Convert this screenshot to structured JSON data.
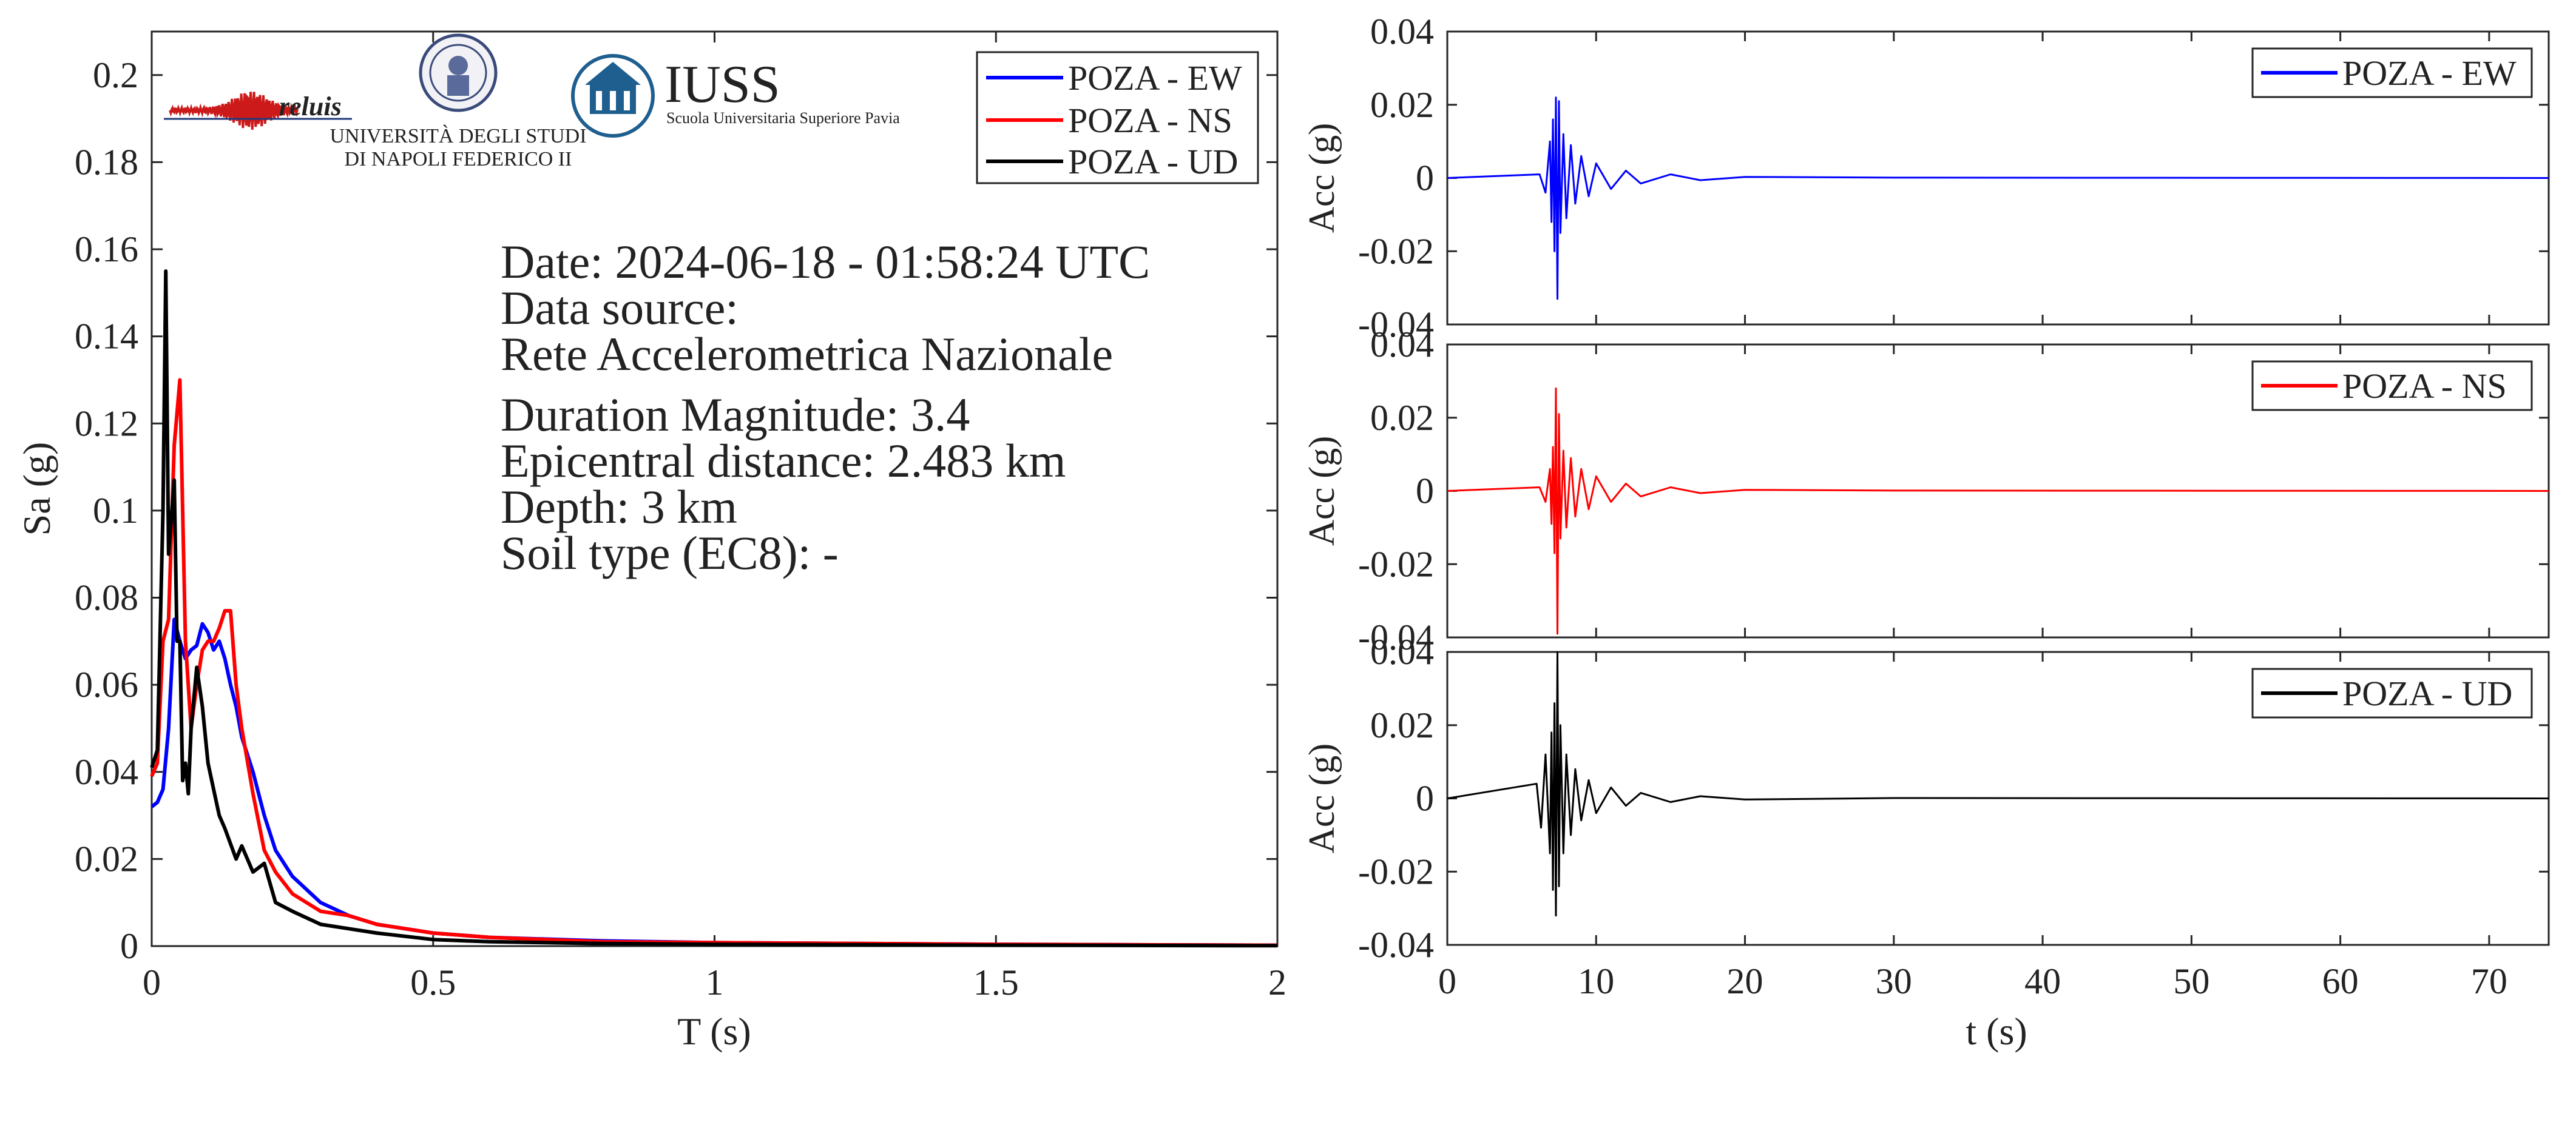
{
  "colors": {
    "ew": "#0000ff",
    "ns": "#ff0000",
    "ud": "#000000",
    "axis": "#262626"
  },
  "logos": {
    "reluis": "reluis",
    "unina_line1": "UNIVERSITÀ DEGLI STUDI",
    "unina_line2": "DI NAPOLI FEDERICO II",
    "iuss_title": "IUSS",
    "iuss_subtitle": "Scuola Universitaria Superiore Pavia"
  },
  "info": {
    "date": "Date: 2024-06-18 - 01:58:24 UTC",
    "source_label": "Data source:",
    "source_value": "Rete Accelerometrica Nazionale",
    "magnitude": "Duration Magnitude: 3.4",
    "distance": "Epicentral distance: 2.483 km",
    "depth": "Depth: 3 km",
    "soil": "Soil type (EC8): -"
  },
  "chart_data": [
    {
      "type": "line",
      "xlabel": "T (s)",
      "ylabel": "Sa (g)",
      "xlim": [
        0,
        2
      ],
      "ylim": [
        0,
        0.21
      ],
      "xticks": [
        0,
        0.5,
        1,
        1.5,
        2
      ],
      "xtick_labels": [
        "0",
        "0.5",
        "1",
        "1.5",
        "2"
      ],
      "yticks": [
        0,
        0.02,
        0.04,
        0.06,
        0.08,
        0.1,
        0.12,
        0.14,
        0.16,
        0.18,
        0.2
      ],
      "ytick_labels": [
        "0",
        "0.02",
        "0.04",
        "0.06",
        "0.08",
        "0.1",
        "0.12",
        "0.14",
        "0.16",
        "0.18",
        "0.2"
      ],
      "legend": "top-right",
      "series": [
        {
          "name": "POZA - EW",
          "color": "#0000ff",
          "x": [
            0,
            0.01,
            0.02,
            0.03,
            0.04,
            0.05,
            0.06,
            0.07,
            0.08,
            0.09,
            0.1,
            0.11,
            0.12,
            0.13,
            0.14,
            0.15,
            0.16,
            0.18,
            0.2,
            0.22,
            0.25,
            0.3,
            0.35,
            0.4,
            0.5,
            0.6,
            0.8,
            1.0,
            1.5,
            2.0
          ],
          "y": [
            0.032,
            0.033,
            0.036,
            0.05,
            0.075,
            0.07,
            0.066,
            0.068,
            0.069,
            0.074,
            0.072,
            0.068,
            0.07,
            0.066,
            0.06,
            0.055,
            0.048,
            0.04,
            0.03,
            0.022,
            0.016,
            0.01,
            0.007,
            0.005,
            0.003,
            0.002,
            0.0012,
            0.0008,
            0.0004,
            0.0002
          ]
        },
        {
          "name": "POZA - NS",
          "color": "#ff0000",
          "x": [
            0,
            0.01,
            0.02,
            0.03,
            0.04,
            0.05,
            0.06,
            0.07,
            0.08,
            0.09,
            0.1,
            0.11,
            0.12,
            0.13,
            0.14,
            0.15,
            0.16,
            0.18,
            0.2,
            0.22,
            0.25,
            0.3,
            0.35,
            0.4,
            0.5,
            0.6,
            0.8,
            1.0,
            1.5,
            2.0
          ],
          "y": [
            0.039,
            0.042,
            0.07,
            0.075,
            0.115,
            0.13,
            0.07,
            0.05,
            0.06,
            0.068,
            0.07,
            0.07,
            0.073,
            0.077,
            0.077,
            0.06,
            0.05,
            0.035,
            0.022,
            0.017,
            0.012,
            0.008,
            0.007,
            0.005,
            0.003,
            0.002,
            0.001,
            0.0008,
            0.0004,
            0.0002
          ]
        },
        {
          "name": "POZA - UD",
          "color": "#000000",
          "x": [
            0,
            0.01,
            0.02,
            0.025,
            0.03,
            0.04,
            0.045,
            0.05,
            0.055,
            0.06,
            0.065,
            0.07,
            0.08,
            0.09,
            0.1,
            0.11,
            0.12,
            0.13,
            0.15,
            0.16,
            0.17,
            0.18,
            0.2,
            0.22,
            0.25,
            0.3,
            0.35,
            0.4,
            0.5,
            0.6,
            0.8,
            1.0,
            1.5,
            2.0
          ],
          "y": [
            0.041,
            0.045,
            0.1,
            0.155,
            0.09,
            0.107,
            0.07,
            0.07,
            0.038,
            0.042,
            0.035,
            0.05,
            0.064,
            0.055,
            0.042,
            0.036,
            0.03,
            0.027,
            0.02,
            0.023,
            0.02,
            0.017,
            0.019,
            0.01,
            0.008,
            0.005,
            0.004,
            0.003,
            0.0015,
            0.001,
            0.0006,
            0.0004,
            0.0002,
            0.0001
          ]
        }
      ]
    },
    {
      "type": "line",
      "xlabel": "",
      "ylabel": "Acc (g)",
      "xlim": [
        0,
        74
      ],
      "ylim": [
        -0.04,
        0.04
      ],
      "yticks": [
        -0.04,
        -0.02,
        0,
        0.02,
        0.04
      ],
      "ytick_labels": [
        "-0.04",
        "-0.02",
        "0",
        "0.02",
        "0.04"
      ],
      "legend": "top-right",
      "series": [
        {
          "name": "POZA - EW",
          "color": "#0000ff",
          "x": [
            0,
            6.2,
            6.6,
            6.9,
            7.0,
            7.1,
            7.2,
            7.3,
            7.4,
            7.5,
            7.6,
            7.8,
            8.0,
            8.3,
            8.6,
            9.0,
            9.5,
            10,
            11,
            12,
            13,
            15,
            17,
            20,
            30,
            74
          ],
          "y": [
            0,
            0.001,
            -0.004,
            0.01,
            -0.012,
            0.016,
            -0.02,
            0.022,
            -0.033,
            0.021,
            -0.015,
            0.012,
            -0.011,
            0.009,
            -0.007,
            0.006,
            -0.005,
            0.004,
            -0.003,
            0.002,
            -0.0015,
            0.001,
            -0.0006,
            0.0003,
            0.0001,
            0
          ]
        },
        {
          "name": "POZA - NS",
          "color": "#ff0000",
          "x": [
            0,
            6.2,
            6.6,
            6.9,
            7.0,
            7.1,
            7.2,
            7.3,
            7.4,
            7.5,
            7.6,
            7.8,
            8.0,
            8.3,
            8.6,
            9.0,
            9.5,
            10,
            11,
            12,
            13,
            15,
            17,
            20,
            30,
            74
          ],
          "y": [
            0,
            0.001,
            -0.003,
            0.006,
            -0.009,
            0.012,
            -0.017,
            0.028,
            -0.039,
            0.021,
            -0.013,
            0.011,
            -0.01,
            0.009,
            -0.007,
            0.006,
            -0.005,
            0.004,
            -0.003,
            0.002,
            -0.0015,
            0.001,
            -0.0006,
            0.0003,
            0.0001,
            0
          ]
        },
        {
          "name": "POZA - UD",
          "color": "#000000",
          "x": [
            0,
            6.0,
            6.3,
            6.6,
            6.9,
            7.0,
            7.1,
            7.2,
            7.3,
            7.4,
            7.5,
            7.6,
            7.8,
            8.0,
            8.3,
            8.6,
            9.0,
            9.5,
            10,
            11,
            12,
            13,
            15,
            17,
            20,
            30,
            74
          ],
          "y": [
            0,
            0.004,
            -0.008,
            0.012,
            -0.015,
            0.018,
            -0.025,
            0.026,
            -0.032,
            0.04,
            -0.024,
            0.02,
            -0.015,
            0.012,
            -0.01,
            0.008,
            -0.006,
            0.005,
            -0.004,
            0.003,
            -0.002,
            0.0015,
            -0.001,
            0.0006,
            -0.0003,
            0.0001,
            0
          ]
        }
      ]
    }
  ],
  "accel_axis": {
    "xlabel": "t (s)",
    "xticks": [
      0,
      10,
      20,
      30,
      40,
      50,
      60,
      70
    ],
    "xtick_labels": [
      "0",
      "10",
      "20",
      "30",
      "40",
      "50",
      "60",
      "70"
    ]
  }
}
